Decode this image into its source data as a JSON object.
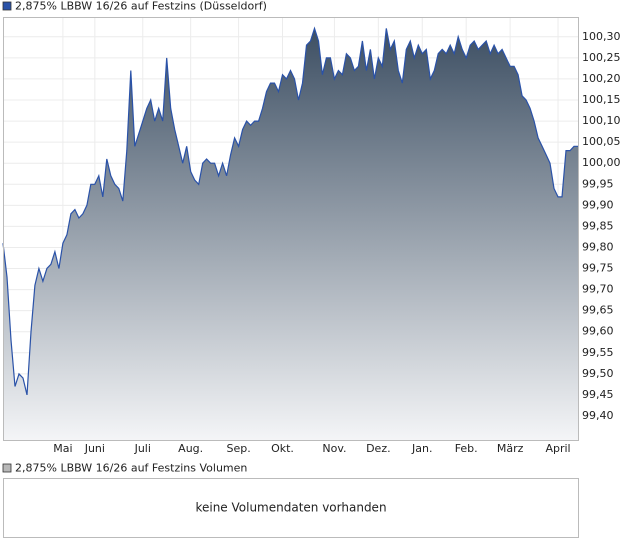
{
  "chart_data": {
    "type": "area",
    "series": [
      {
        "name": "2,875% LBBW 16/26 auf Festzins (Düsseldorf)",
        "color": "#2a52a8",
        "values": [
          99.81,
          99.73,
          99.58,
          99.47,
          99.5,
          99.49,
          99.45,
          99.6,
          99.71,
          99.75,
          99.72,
          99.75,
          99.76,
          99.79,
          99.75,
          99.81,
          99.83,
          99.88,
          99.89,
          99.87,
          99.88,
          99.9,
          99.95,
          99.95,
          99.97,
          99.92,
          100.01,
          99.97,
          99.95,
          99.94,
          99.91,
          100.03,
          100.22,
          100.04,
          100.07,
          100.1,
          100.13,
          100.15,
          100.1,
          100.13,
          100.1,
          100.25,
          100.13,
          100.08,
          100.04,
          100.0,
          100.04,
          99.98,
          99.96,
          99.95,
          100.0,
          100.01,
          100.0,
          100.0,
          99.97,
          100.0,
          99.97,
          100.02,
          100.06,
          100.04,
          100.08,
          100.1,
          100.09,
          100.1,
          100.1,
          100.13,
          100.17,
          100.19,
          100.19,
          100.17,
          100.21,
          100.2,
          100.22,
          100.2,
          100.15,
          100.19,
          100.28,
          100.29,
          100.32,
          100.29,
          100.21,
          100.25,
          100.25,
          100.2,
          100.22,
          100.21,
          100.26,
          100.25,
          100.22,
          100.23,
          100.29,
          100.22,
          100.27,
          100.2,
          100.25,
          100.23,
          100.32,
          100.27,
          100.29,
          100.22,
          100.19,
          100.27,
          100.29,
          100.25,
          100.28,
          100.26,
          100.27,
          100.2,
          100.22,
          100.26,
          100.27,
          100.26,
          100.28,
          100.26,
          100.3,
          100.27,
          100.25,
          100.28,
          100.29,
          100.27,
          100.28,
          100.29,
          100.26,
          100.28,
          100.26,
          100.27,
          100.25,
          100.23,
          100.23,
          100.21,
          100.16,
          100.15,
          100.13,
          100.1,
          100.06,
          100.04,
          100.02,
          100.0,
          99.94,
          99.92,
          99.92,
          100.03,
          100.03,
          100.04,
          100.04
        ]
      }
    ],
    "xlim": [
      0,
      144
    ],
    "xticks": [
      {
        "value": 15,
        "label": "Mai"
      },
      {
        "value": 23,
        "label": "Juni"
      },
      {
        "value": 35,
        "label": "Juli"
      },
      {
        "value": 47,
        "label": "Aug."
      },
      {
        "value": 59,
        "label": "Sep."
      },
      {
        "value": 70,
        "label": "Okt."
      },
      {
        "value": 83,
        "label": "Nov."
      },
      {
        "value": 94,
        "label": "Dez."
      },
      {
        "value": 105,
        "label": "Jan."
      },
      {
        "value": 116,
        "label": "Feb."
      },
      {
        "value": 127,
        "label": "März"
      },
      {
        "value": 139,
        "label": "April"
      }
    ],
    "ylim": [
      99.343,
      100.347
    ],
    "yticks": [
      {
        "value": 99.4,
        "label": "99,40"
      },
      {
        "value": 99.45,
        "label": "99,45"
      },
      {
        "value": 99.5,
        "label": "99,50"
      },
      {
        "value": 99.55,
        "label": "99,55"
      },
      {
        "value": 99.6,
        "label": "99,60"
      },
      {
        "value": 99.65,
        "label": "99,65"
      },
      {
        "value": 99.7,
        "label": "99,70"
      },
      {
        "value": 99.75,
        "label": "99,75"
      },
      {
        "value": 99.8,
        "label": "99,80"
      },
      {
        "value": 99.85,
        "label": "99,85"
      },
      {
        "value": 99.9,
        "label": "99,90"
      },
      {
        "value": 99.95,
        "label": "99,95"
      },
      {
        "value": 100.0,
        "label": "100,00"
      },
      {
        "value": 100.05,
        "label": "100,05"
      },
      {
        "value": 100.1,
        "label": "100,10"
      },
      {
        "value": 100.15,
        "label": "100,15"
      },
      {
        "value": 100.2,
        "label": "100,20"
      },
      {
        "value": 100.25,
        "label": "100,25"
      },
      {
        "value": 100.3,
        "label": "100,30"
      }
    ],
    "grid": true
  },
  "volume_panel": {
    "legend": "2,875% LBBW 16/26 auf Festzins Volumen",
    "color": "#b8b8b8",
    "message": "keine Volumendaten vorhanden"
  }
}
